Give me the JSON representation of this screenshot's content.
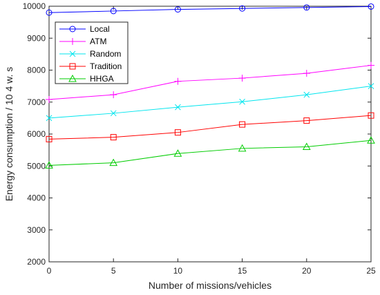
{
  "chart_data": {
    "type": "line",
    "xlabel": "Number of missions/vehicles",
    "ylabel": "Energy consumption / 10  4 w. s",
    "x": [
      0,
      5,
      10,
      15,
      20,
      25
    ],
    "xlim": [
      0,
      25
    ],
    "ylim": [
      2000,
      10000
    ],
    "xticks": [
      "0",
      "5",
      "10",
      "15",
      "20",
      "25"
    ],
    "yticks": [
      "2000",
      "3000",
      "4000",
      "5000",
      "6000",
      "7000",
      "8000",
      "9000",
      "10000"
    ],
    "grid": false,
    "legend_position": "top-left",
    "series": [
      {
        "name": "Local",
        "color": "#0000ff",
        "marker": "circle",
        "values": [
          9800,
          9850,
          9900,
          9930,
          9960,
          9990
        ]
      },
      {
        "name": "ATM",
        "color": "#ff00ff",
        "marker": "plus",
        "values": [
          7080,
          7230,
          7650,
          7750,
          7900,
          8150
        ]
      },
      {
        "name": "Random",
        "color": "#00e5ee",
        "marker": "x",
        "values": [
          6500,
          6650,
          6840,
          7010,
          7230,
          7500
        ]
      },
      {
        "name": "Tradition",
        "color": "#ff0000",
        "marker": "square",
        "values": [
          5840,
          5900,
          6050,
          6300,
          6420,
          6580
        ]
      },
      {
        "name": "HHGA",
        "color": "#00cc00",
        "marker": "triangle",
        "values": [
          5020,
          5100,
          5390,
          5550,
          5600,
          5800
        ]
      }
    ]
  }
}
